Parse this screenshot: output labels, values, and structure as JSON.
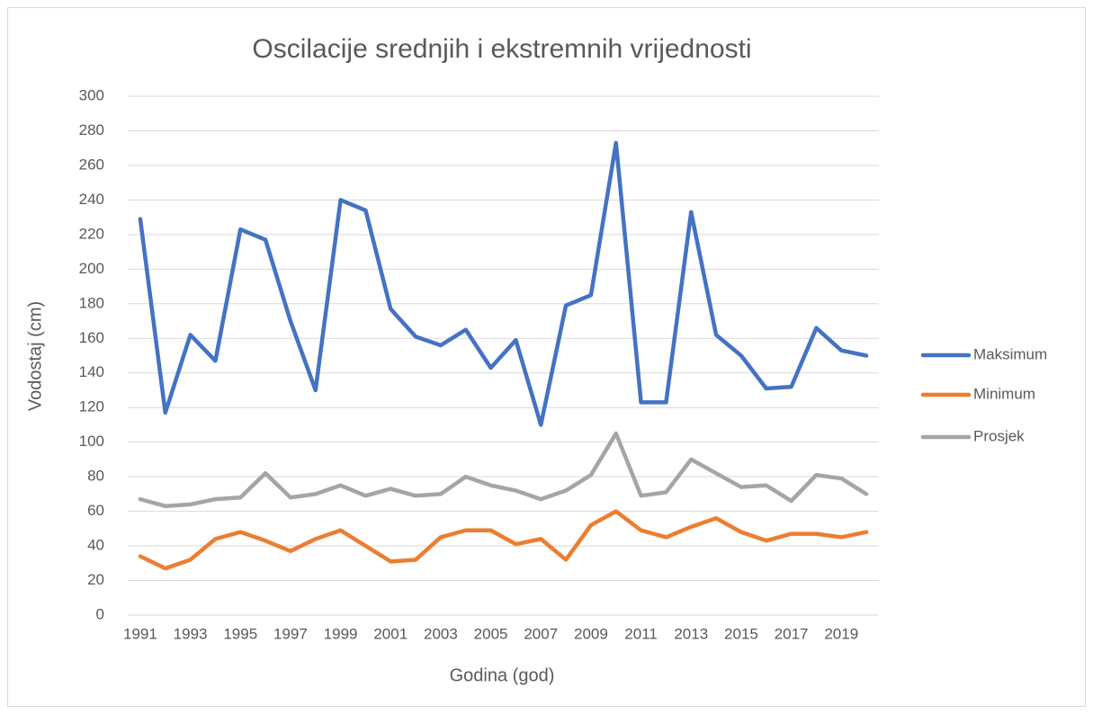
{
  "chart_data": {
    "type": "line",
    "title": "Oscilacije srednjih i ekstremnih vrijednosti",
    "x_label": "Godina (god)",
    "y_label": "Vodostaj (cm)",
    "x": [
      1991,
      1992,
      1993,
      1994,
      1995,
      1996,
      1997,
      1998,
      1999,
      2000,
      2001,
      2002,
      2003,
      2004,
      2005,
      2006,
      2007,
      2008,
      2009,
      2010,
      2011,
      2012,
      2013,
      2014,
      2015,
      2016,
      2017,
      2018,
      2019,
      2020
    ],
    "xlim": [
      1990.5,
      2020.5
    ],
    "xticks": [
      1991,
      1993,
      1995,
      1997,
      1999,
      2001,
      2003,
      2005,
      2007,
      2009,
      2011,
      2013,
      2015,
      2017,
      2019
    ],
    "ylim": [
      0,
      300
    ],
    "yticks": [
      0,
      20,
      40,
      60,
      80,
      100,
      120,
      140,
      160,
      180,
      200,
      220,
      240,
      260,
      280,
      300
    ],
    "grid": true,
    "legend": "right",
    "series": [
      {
        "name": "Maksimum",
        "color": "#4472c4",
        "values": [
          229,
          117,
          162,
          147,
          223,
          217,
          170,
          130,
          240,
          234,
          177,
          161,
          156,
          165,
          143,
          159,
          110,
          179,
          185,
          273,
          123,
          123,
          233,
          162,
          150,
          131,
          132,
          166,
          153,
          150
        ]
      },
      {
        "name": "Minimum",
        "color": "#ed7d31",
        "values": [
          34,
          27,
          32,
          44,
          48,
          43,
          37,
          44,
          49,
          40,
          31,
          32,
          45,
          49,
          49,
          41,
          44,
          32,
          52,
          60,
          49,
          45,
          51,
          56,
          48,
          43,
          47,
          47,
          45,
          48
        ]
      },
      {
        "name": "Prosjek",
        "color": "#a5a5a5",
        "values": [
          67,
          63,
          64,
          67,
          68,
          82,
          68,
          70,
          75,
          69,
          73,
          69,
          70,
          80,
          75,
          72,
          67,
          72,
          81,
          105,
          69,
          71,
          90,
          82,
          74,
          75,
          66,
          81,
          79,
          70
        ]
      }
    ]
  }
}
